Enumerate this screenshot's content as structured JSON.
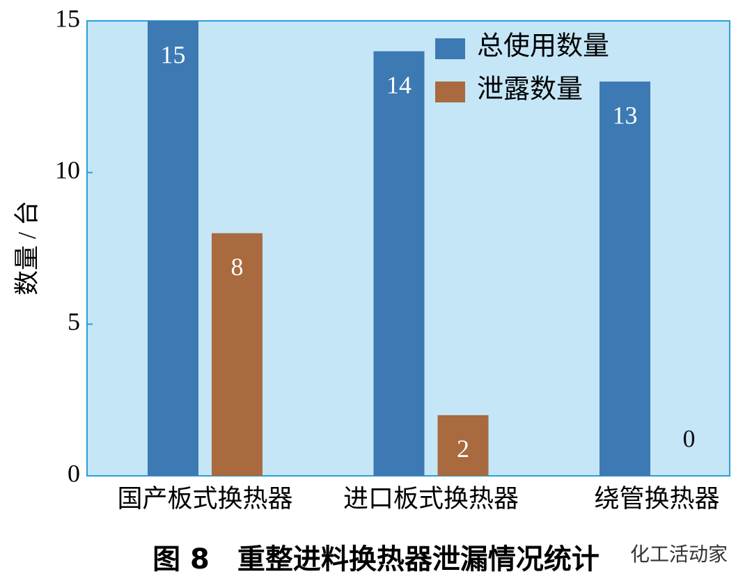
{
  "chart_data": {
    "type": "bar",
    "title": "图 8　重整进料换热器泄漏情况统计",
    "y_label": "数量 / 台",
    "source": "化工活动家",
    "categories": [
      "国产板式换热器",
      "进口板式换热器",
      "绕管换热器"
    ],
    "series": [
      {
        "name": "总使用数量",
        "color": "#3d7ab3",
        "values": [
          15,
          14,
          13
        ]
      },
      {
        "name": "泄露数量",
        "color": "#a86a3e",
        "values": [
          8,
          2,
          0
        ]
      }
    ],
    "ylim": [
      0,
      15
    ],
    "yticks": [
      0,
      5,
      10,
      15
    ],
    "legend": "upper right",
    "background": "#c5e6f7"
  }
}
